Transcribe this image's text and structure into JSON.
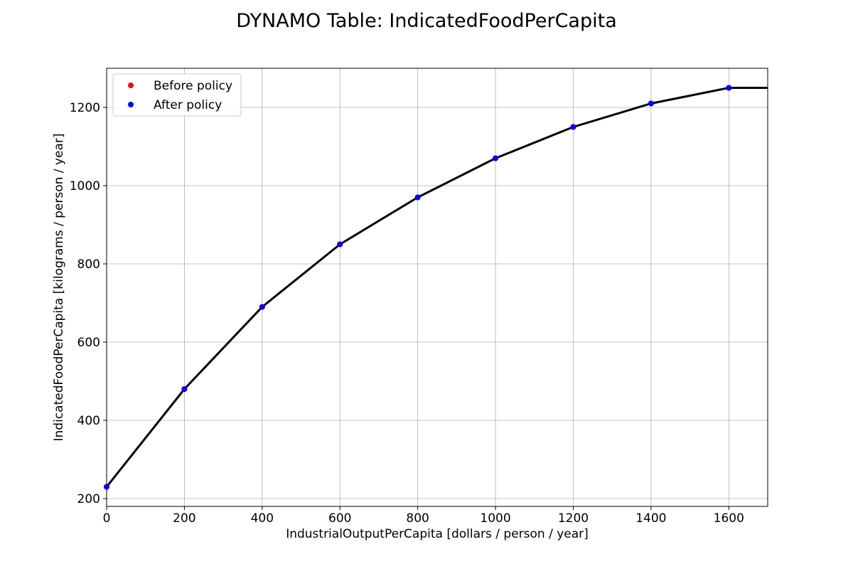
{
  "chart_data": {
    "type": "line",
    "title": "DYNAMO Table: IndicatedFoodPerCapita",
    "xlabel": "IndustrialOutputPerCapita [dollars / person / year]",
    "ylabel": "IndicatedFoodPerCapita [kilograms / person / year]",
    "xlim": [
      0,
      1700
    ],
    "ylim": [
      180,
      1300
    ],
    "xticks": [
      0,
      200,
      400,
      600,
      800,
      1000,
      1200,
      1400,
      1600
    ],
    "yticks": [
      200,
      400,
      600,
      800,
      1000,
      1200
    ],
    "grid": true,
    "legend_position": "top-left",
    "line": {
      "x": [
        0,
        200,
        400,
        600,
        800,
        1000,
        1200,
        1400,
        1600,
        1700
      ],
      "y": [
        230,
        480,
        690,
        850,
        970,
        1070,
        1150,
        1210,
        1250,
        1250
      ],
      "color": "#000000"
    },
    "series": [
      {
        "name": "Before policy",
        "color": "#ff0000",
        "x": [
          0,
          200,
          400,
          600,
          800,
          1000,
          1200,
          1400,
          1600
        ],
        "y": [
          230,
          480,
          690,
          850,
          970,
          1070,
          1150,
          1210,
          1250
        ]
      },
      {
        "name": "After policy",
        "color": "#0000ff",
        "x": [
          0,
          200,
          400,
          600,
          800,
          1000,
          1200,
          1400,
          1600
        ],
        "y": [
          230,
          480,
          690,
          850,
          970,
          1070,
          1150,
          1210,
          1250
        ]
      }
    ]
  }
}
